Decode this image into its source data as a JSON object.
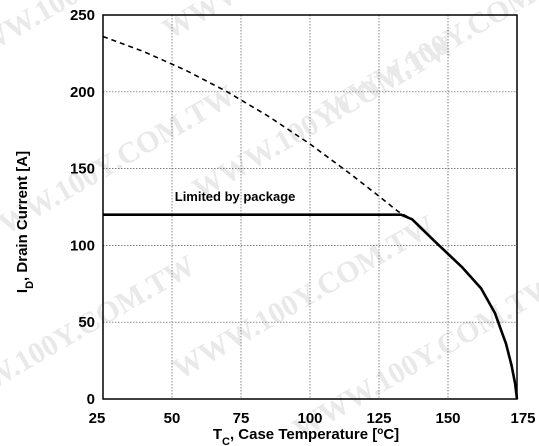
{
  "chart_data": {
    "type": "line",
    "xlim": [
      25,
      175
    ],
    "ylim": [
      0,
      250
    ],
    "xticks": [
      25,
      50,
      75,
      100,
      125,
      150,
      175
    ],
    "yticks": [
      0,
      50,
      100,
      150,
      200,
      250
    ],
    "grid": true,
    "xlabel": {
      "main": "T",
      "sub": "C",
      "rest": ", Case Temperature [",
      "deg": "o",
      "end": "C]"
    },
    "ylabel": {
      "main": "I",
      "sub": "D",
      "rest": ", Drain Current [A]"
    },
    "annotation": {
      "text": "Limited by package",
      "x": 51,
      "y": 129
    },
    "watermark": "WWW.100Y.COM.TW",
    "series": [
      {
        "style": "dashed",
        "x": [
          25,
          40,
          55,
          70,
          85,
          100,
          115,
          125,
          132,
          137
        ],
        "y": [
          236,
          226,
          214,
          200,
          184,
          166,
          146,
          132,
          122,
          117
        ]
      },
      {
        "style": "solid",
        "x": [
          25,
          100,
          125,
          133,
          137,
          145,
          155,
          162,
          167,
          171,
          173,
          174.3,
          175
        ],
        "y": [
          120,
          120,
          120,
          120,
          117,
          103,
          86,
          72,
          56,
          36,
          22,
          10,
          0
        ]
      }
    ]
  }
}
